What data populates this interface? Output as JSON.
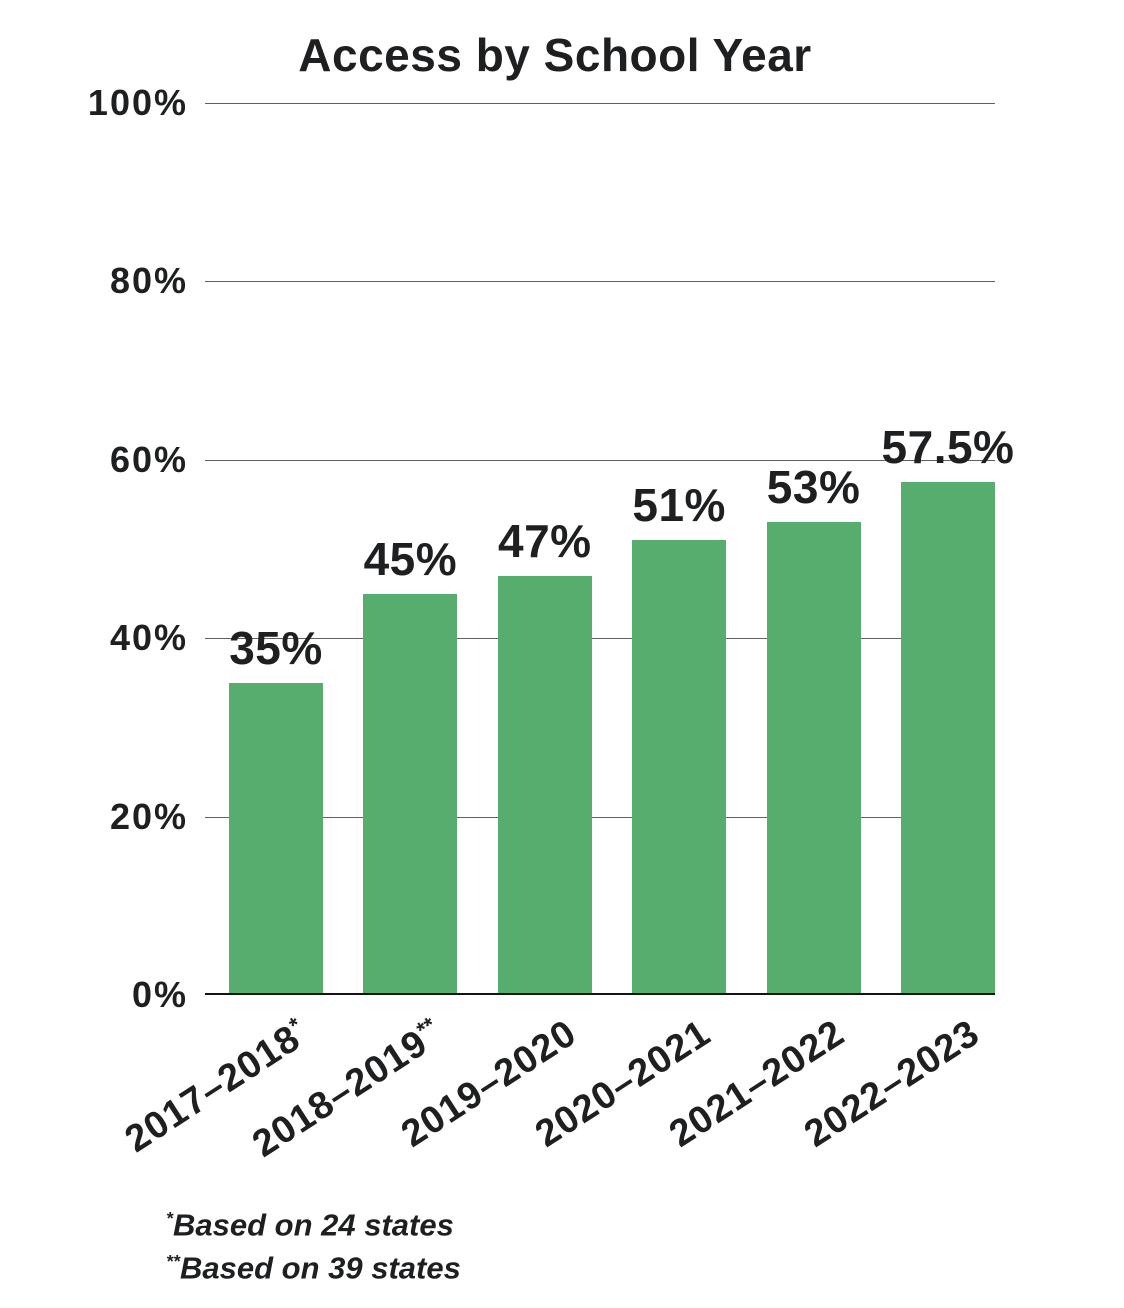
{
  "chart_data": {
    "type": "bar",
    "title": "Access by School Year",
    "categories": [
      "2017–2018*",
      "2018–2019**",
      "2019–2020",
      "2020–2021",
      "2021–2022",
      "2022–2023"
    ],
    "values": [
      35,
      45,
      47,
      51,
      53,
      57.5
    ],
    "value_labels": [
      "35%",
      "45%",
      "47%",
      "51%",
      "53%",
      "57.5%"
    ],
    "xlabel": "",
    "ylabel": "",
    "ylim": [
      0,
      100
    ],
    "y_tick_labels": [
      "0%",
      "20%",
      "40%",
      "60%",
      "80%",
      "100%"
    ],
    "y_tick_values": [
      0,
      20,
      40,
      60,
      80,
      100
    ],
    "grid": "horizontal",
    "legend": "none",
    "bar_color": "#56ad6d",
    "footnotes": [
      {
        "marker": "*",
        "text": "Based on 24 states"
      },
      {
        "marker": "**",
        "text": "Based on 39 states"
      }
    ]
  },
  "colors": {
    "bar": "#56ad6d",
    "text": "#1d1f21",
    "gridline": "#606060",
    "baseline": "#141414",
    "background": "#ffffff"
  }
}
